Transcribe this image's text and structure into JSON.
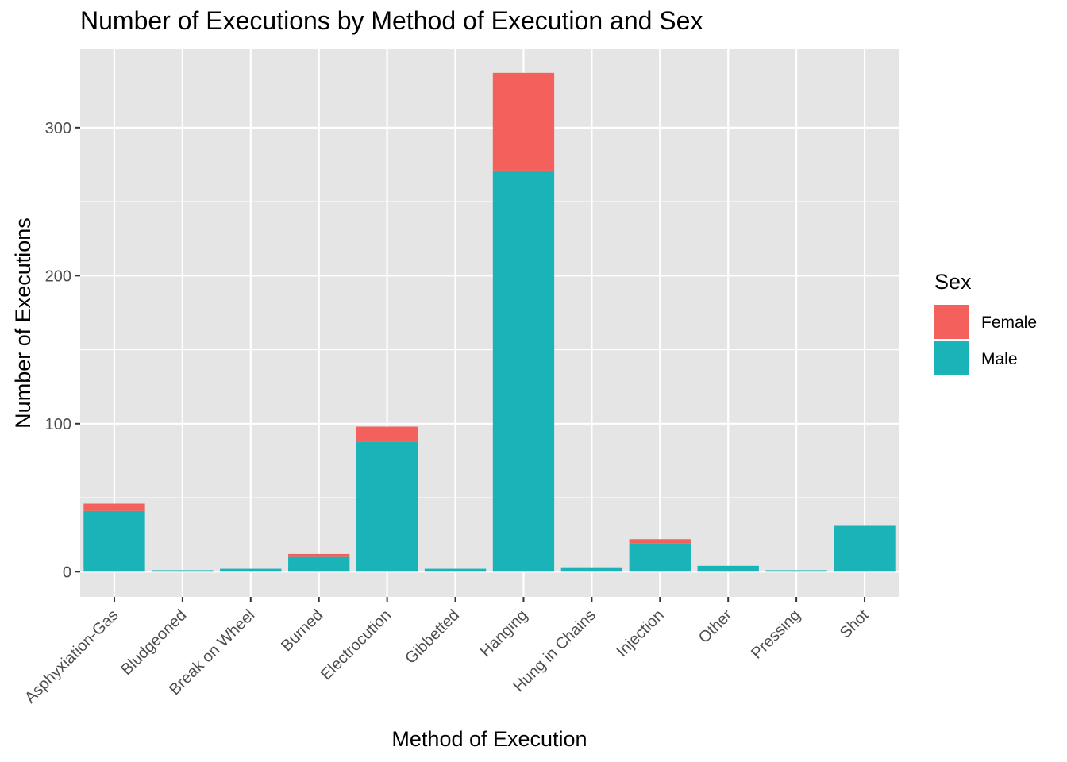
{
  "chart_data": {
    "type": "bar",
    "stacked": true,
    "title": "Number of Executions by Method of Execution and Sex",
    "xlabel": "Method of Execution",
    "ylabel": "Number of Executions",
    "categories": [
      "Asphyxiation-Gas",
      "Bludgeoned",
      "Break on Wheel",
      "Burned",
      "Electrocution",
      "Gibbetted",
      "Hanging",
      "Hung in Chains",
      "Injection",
      "Other",
      "Pressing",
      "Shot"
    ],
    "series": [
      {
        "name": "Male",
        "color": "#19B3B8",
        "values": [
          41,
          1,
          2,
          10,
          88,
          2,
          271,
          3,
          19,
          4,
          1,
          31
        ]
      },
      {
        "name": "Female",
        "color": "#F4605B",
        "values": [
          5,
          0,
          0,
          2,
          10,
          0,
          66,
          0,
          3,
          0,
          0,
          0
        ]
      }
    ],
    "ylim": [
      -17,
      353
    ],
    "yticks": [
      0,
      100,
      200,
      300
    ],
    "grid": true,
    "panel_background": "#E5E5E5",
    "legend": {
      "title": "Sex",
      "position": "right",
      "entries": [
        {
          "label": "Female",
          "color": "#F4605B"
        },
        {
          "label": "Male",
          "color": "#19B3B8"
        }
      ]
    }
  }
}
